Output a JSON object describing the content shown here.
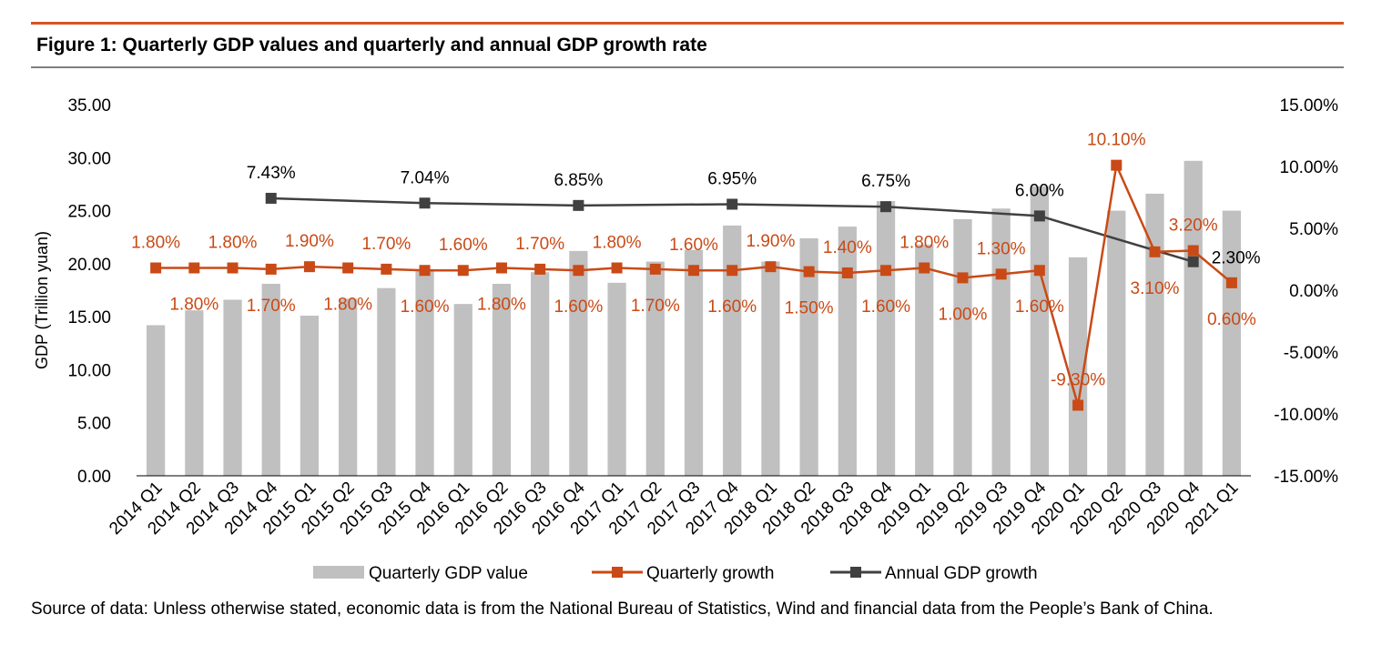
{
  "figure": {
    "title": "Figure 1: Quarterly GDP values and quarterly and annual GDP growth rate",
    "source": "Source of data: Unless otherwise stated, economic data is from the National Bureau of Statistics, Wind and financial data from the People’s Bank of China."
  },
  "colors": {
    "accent": "#d9531e",
    "bars": "#c0c0c0",
    "quarterly_line": "#c94a16",
    "annual_line": "#404040",
    "rule_gray": "#7f7f7f"
  },
  "chart_data": {
    "type": "bar",
    "title": "Figure 1: Quarterly GDP values and quarterly and annual GDP growth rate",
    "xlabel": "",
    "ylabel": "GDP (Trillion yuan)",
    "ylim": [
      0,
      35
    ],
    "y2lim": [
      -15,
      15
    ],
    "grid": false,
    "legend_position": "bottom",
    "y_ticks": [
      "0.00",
      "5.00",
      "10.00",
      "15.00",
      "20.00",
      "25.00",
      "30.00",
      "35.00"
    ],
    "y2_ticks": [
      "-15.00%",
      "-10.00%",
      "-5.00%",
      "0.00%",
      "5.00%",
      "10.00%",
      "15.00%"
    ],
    "categories": [
      "2014 Q1",
      "2014 Q2",
      "2014 Q3",
      "2014 Q4",
      "2015 Q1",
      "2015 Q2",
      "2015 Q3",
      "2015 Q4",
      "2016 Q1",
      "2016 Q2",
      "2016 Q3",
      "2016 Q4",
      "2017 Q1",
      "2017 Q2",
      "2017 Q3",
      "2017 Q4",
      "2018 Q1",
      "2018 Q2",
      "2018 Q3",
      "2018 Q4",
      "2019 Q1",
      "2019 Q2",
      "2019 Q3",
      "2019 Q4",
      "2020 Q1",
      "2020 Q2",
      "2020 Q3",
      "2020 Q4",
      "2021 Q1"
    ],
    "series": [
      {
        "name": "Quarterly GDP value",
        "type": "bar",
        "axis": "left",
        "values": [
          14.2,
          15.6,
          16.6,
          18.1,
          15.1,
          16.7,
          17.7,
          19.5,
          16.2,
          18.1,
          19.2,
          21.2,
          18.2,
          20.2,
          21.3,
          23.6,
          20.2,
          22.4,
          23.5,
          25.9,
          21.8,
          24.2,
          25.2,
          27.3,
          20.6,
          25.0,
          26.6,
          29.7,
          25.0
        ]
      },
      {
        "name": "Quarterly growth",
        "type": "line",
        "axis": "right",
        "values": [
          1.8,
          1.8,
          1.8,
          1.7,
          1.9,
          1.8,
          1.7,
          1.6,
          1.6,
          1.8,
          1.7,
          1.6,
          1.8,
          1.7,
          1.6,
          1.6,
          1.9,
          1.5,
          1.4,
          1.6,
          1.8,
          1.0,
          1.3,
          1.6,
          -9.3,
          10.1,
          3.1,
          3.2,
          0.6
        ],
        "labels": [
          "1.80%",
          "1.80%",
          "1.80%",
          "1.70%",
          "1.90%",
          "1.80%",
          "1.70%",
          "1.60%",
          "1.60%",
          "1.80%",
          "1.70%",
          "1.60%",
          "1.80%",
          "1.70%",
          "1.60%",
          "1.60%",
          "1.90%",
          "1.50%",
          "1.40%",
          "1.60%",
          "1.80%",
          "1.00%",
          "1.30%",
          "1.60%",
          "-9.30%",
          "10.10%",
          "3.10%",
          "3.20%",
          "0.60%"
        ],
        "label_positions": [
          "above",
          "below",
          "above",
          "below",
          "above",
          "below",
          "above",
          "below",
          "above",
          "below",
          "above",
          "below",
          "above",
          "below",
          "above",
          "below",
          "above",
          "below",
          "above",
          "below",
          "above",
          "below",
          "above",
          "below",
          "above",
          "above",
          "below",
          "above",
          "below"
        ]
      },
      {
        "name": "Annual GDP growth",
        "type": "line",
        "axis": "right",
        "points": [
          {
            "category": "2014 Q4",
            "value": 7.43,
            "label": "7.43%"
          },
          {
            "category": "2015 Q4",
            "value": 7.04,
            "label": "7.04%"
          },
          {
            "category": "2016 Q4",
            "value": 6.85,
            "label": "6.85%"
          },
          {
            "category": "2017 Q4",
            "value": 6.95,
            "label": "6.95%"
          },
          {
            "category": "2018 Q4",
            "value": 6.75,
            "label": "6.75%"
          },
          {
            "category": "2019 Q4",
            "value": 6.0,
            "label": "6.00%"
          },
          {
            "category": "2020 Q4",
            "value": 2.3,
            "label": "2.30%"
          }
        ],
        "label_positions": [
          "above",
          "above",
          "above",
          "above",
          "above",
          "above",
          "right"
        ]
      }
    ]
  }
}
